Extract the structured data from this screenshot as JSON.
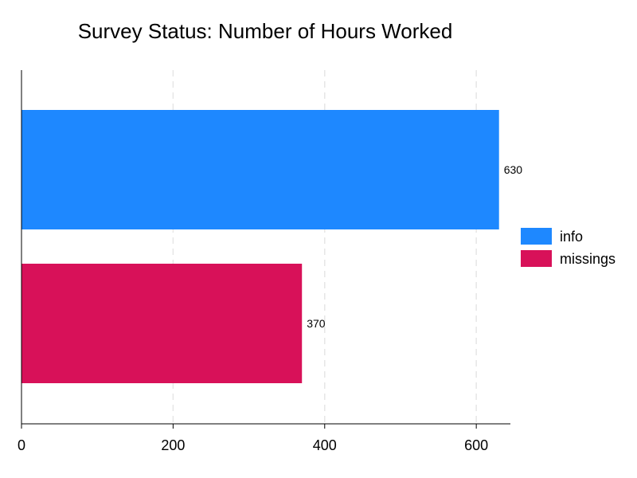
{
  "chart_data": {
    "type": "bar",
    "orientation": "horizontal",
    "title": "Survey Status: Number of Hours Worked",
    "xlabel": "",
    "ylabel": "",
    "xlim": [
      0,
      645
    ],
    "x_ticks": [
      0,
      200,
      400,
      600
    ],
    "grid": "vertical dashed",
    "legend_position": "right",
    "series": [
      {
        "name": "info",
        "value": 630,
        "label": "630",
        "color": "#1E88FF"
      },
      {
        "name": "missings",
        "value": 370,
        "label": "370",
        "color": "#D81159"
      }
    ]
  }
}
